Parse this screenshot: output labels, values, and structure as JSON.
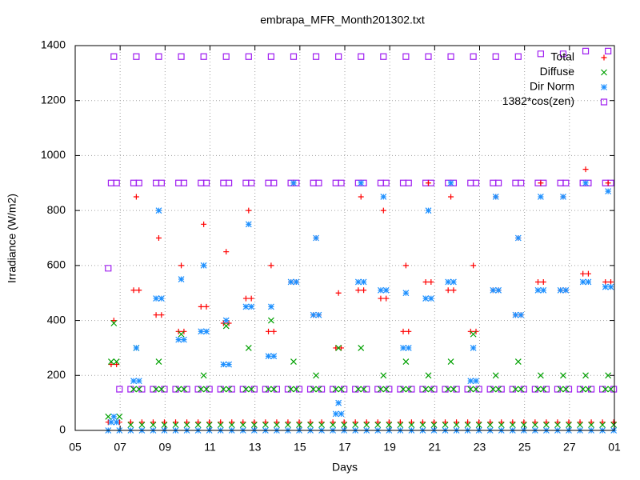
{
  "chart_data": {
    "type": "scatter",
    "title": "embrapa_MFR_Month201302.txt",
    "x_label": "Days",
    "y_label": "Irradiance (W/m2)",
    "xlim": [
      5,
      29
    ],
    "xticks": [
      {
        "value": 5,
        "label": "05"
      },
      {
        "value": 7,
        "label": "07"
      },
      {
        "value": 9,
        "label": "09"
      },
      11,
      13,
      15,
      17,
      19,
      21,
      23,
      25,
      27,
      {
        "value": 29,
        "label": "01"
      }
    ],
    "ylim": [
      0,
      1400
    ],
    "yticks": [
      0,
      200,
      400,
      600,
      800,
      1000,
      1200,
      1400
    ],
    "grid": true,
    "legend": "top-right",
    "x": [
      6.47,
      6.6,
      6.72,
      6.84,
      6.97,
      7.47,
      7.6,
      7.72,
      7.84,
      7.97,
      8.47,
      8.6,
      8.72,
      8.84,
      8.97,
      9.47,
      9.6,
      9.72,
      9.84,
      9.97,
      10.47,
      10.6,
      10.72,
      10.84,
      10.97,
      11.47,
      11.6,
      11.72,
      11.84,
      11.97,
      12.47,
      12.6,
      12.72,
      12.84,
      12.97,
      13.47,
      13.6,
      13.72,
      13.84,
      13.97,
      14.47,
      14.6,
      14.72,
      14.84,
      14.97,
      15.47,
      15.6,
      15.72,
      15.84,
      15.97,
      16.47,
      16.6,
      16.72,
      16.84,
      16.97,
      17.47,
      17.6,
      17.72,
      17.84,
      17.97,
      18.47,
      18.6,
      18.72,
      18.84,
      18.97,
      19.47,
      19.6,
      19.72,
      19.84,
      19.97,
      20.47,
      20.6,
      20.72,
      20.84,
      20.97,
      21.47,
      21.6,
      21.72,
      21.84,
      21.97,
      22.47,
      22.6,
      22.72,
      22.84,
      22.97,
      23.47,
      23.6,
      23.72,
      23.84,
      23.97,
      24.47,
      24.6,
      24.72,
      24.84,
      24.97,
      25.47,
      25.6,
      25.72,
      25.84,
      25.97,
      26.47,
      26.6,
      26.72,
      26.84,
      26.97,
      27.47,
      27.6,
      27.72,
      27.84,
      27.97,
      28.47,
      28.6,
      28.72,
      28.84,
      28.97
    ],
    "series": [
      {
        "name": "1382*cos(zen)",
        "color": "#a020f0",
        "marker": "square",
        "values": [
          590,
          900,
          1360,
          900,
          150,
          150,
          900,
          1360,
          900,
          150,
          150,
          900,
          1360,
          900,
          150,
          150,
          900,
          1360,
          900,
          150,
          150,
          900,
          1360,
          900,
          150,
          150,
          900,
          1360,
          900,
          150,
          150,
          900,
          1360,
          900,
          150,
          150,
          900,
          1360,
          900,
          150,
          150,
          900,
          1360,
          900,
          150,
          150,
          900,
          1360,
          900,
          150,
          150,
          900,
          1360,
          900,
          150,
          150,
          900,
          1360,
          900,
          150,
          150,
          900,
          1360,
          900,
          150,
          150,
          900,
          1360,
          900,
          150,
          150,
          900,
          1360,
          900,
          150,
          150,
          900,
          1360,
          900,
          150,
          150,
          900,
          1360,
          900,
          150,
          150,
          900,
          1360,
          900,
          150,
          150,
          900,
          1360,
          900,
          150,
          150,
          900,
          1370,
          900,
          150,
          150,
          900,
          1370,
          900,
          150,
          150,
          900,
          1380,
          900,
          150,
          150,
          900,
          1380,
          900,
          150
        ]
      },
      {
        "name": "Total",
        "color": "#ff0000",
        "marker": "plus",
        "values": [
          30,
          240,
          400,
          240,
          30,
          30,
          510,
          850,
          510,
          30,
          30,
          420,
          700,
          420,
          30,
          30,
          360,
          600,
          360,
          30,
          30,
          450,
          750,
          450,
          30,
          30,
          390,
          650,
          390,
          30,
          30,
          480,
          800,
          480,
          30,
          30,
          360,
          600,
          360,
          30,
          30,
          540,
          900,
          540,
          30,
          30,
          420,
          700,
          420,
          30,
          30,
          300,
          500,
          300,
          30,
          30,
          510,
          850,
          510,
          30,
          30,
          480,
          800,
          480,
          30,
          30,
          360,
          600,
          360,
          30,
          30,
          540,
          900,
          540,
          30,
          30,
          510,
          850,
          510,
          30,
          30,
          360,
          600,
          360,
          30,
          30,
          510,
          850,
          510,
          30,
          30,
          420,
          700,
          420,
          30,
          30,
          540,
          900,
          540,
          30,
          30,
          510,
          850,
          510,
          30,
          30,
          570,
          950,
          570,
          30,
          30,
          540,
          900,
          540,
          30
        ]
      },
      {
        "name": "Diffuse",
        "color": "#00a000",
        "marker": "cross",
        "values": [
          50,
          250,
          390,
          250,
          50,
          20,
          150,
          300,
          150,
          20,
          20,
          150,
          250,
          150,
          20,
          20,
          150,
          350,
          150,
          20,
          20,
          150,
          200,
          150,
          20,
          20,
          150,
          380,
          150,
          20,
          20,
          150,
          300,
          150,
          20,
          20,
          150,
          400,
          150,
          20,
          20,
          150,
          250,
          150,
          20,
          20,
          150,
          200,
          150,
          20,
          20,
          150,
          300,
          150,
          20,
          20,
          150,
          300,
          150,
          20,
          20,
          150,
          200,
          150,
          20,
          20,
          150,
          250,
          150,
          20,
          20,
          150,
          200,
          150,
          20,
          20,
          150,
          250,
          150,
          20,
          20,
          150,
          350,
          150,
          20,
          20,
          150,
          200,
          150,
          20,
          20,
          150,
          250,
          150,
          20,
          20,
          150,
          200,
          150,
          20,
          20,
          150,
          200,
          150,
          20,
          20,
          150,
          200,
          150,
          20,
          20,
          150,
          200,
          150,
          20
        ]
      },
      {
        "name": "Dir Norm",
        "color": "#1e90ff",
        "marker": "star",
        "values": [
          0,
          30,
          50,
          30,
          0,
          0,
          180,
          300,
          180,
          0,
          0,
          480,
          800,
          480,
          0,
          0,
          330,
          550,
          330,
          0,
          0,
          360,
          600,
          360,
          0,
          0,
          240,
          400,
          240,
          0,
          0,
          450,
          750,
          450,
          0,
          0,
          270,
          450,
          270,
          0,
          0,
          540,
          900,
          540,
          0,
          0,
          420,
          700,
          420,
          0,
          0,
          60,
          100,
          60,
          0,
          0,
          540,
          900,
          540,
          0,
          0,
          510,
          850,
          510,
          0,
          0,
          300,
          500,
          300,
          0,
          0,
          480,
          800,
          480,
          0,
          0,
          540,
          900,
          540,
          0,
          0,
          180,
          300,
          180,
          0,
          0,
          510,
          850,
          510,
          0,
          0,
          420,
          700,
          420,
          0,
          0,
          510,
          850,
          510,
          0,
          0,
          510,
          850,
          510,
          0,
          0,
          540,
          900,
          540,
          0,
          0,
          522,
          870,
          522,
          0
        ]
      }
    ]
  }
}
